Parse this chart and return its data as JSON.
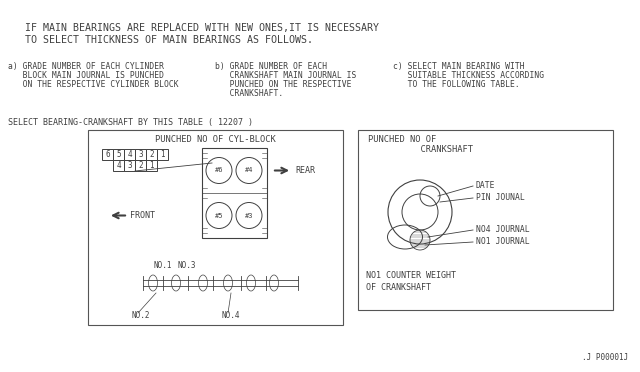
{
  "bg_color": "#ffffff",
  "title_line1": "IF MAIN BEARINGS ARE REPLACED WITH NEW ONES,IT IS NECESSARY",
  "title_line2": "TO SELECT THICKNESS OF MAIN BEARINGS AS FOLLOWS.",
  "sec_a_lines": [
    "a) GRADE NUMBER OF EACH CYLINDER",
    "   BLOCK MAIN JOURNAL IS PUNCHED",
    "   ON THE RESPECTIVE CYLINDER BLOCK"
  ],
  "sec_b_lines": [
    "b) GRADE NUMBER OF EACH",
    "   CRANKSHAFT MAIN JOURNAL IS",
    "   PUNCHED ON THE RESPECTIVE",
    "   CRANKSHAFT."
  ],
  "sec_c_lines": [
    "c) SELECT MAIN BEARING WITH",
    "   SUITABLE THICKNESS ACCORDING",
    "   TO THE FOLLOWING TABLE."
  ],
  "select_label": "SELECT BEARING-CRANKSHAFT BY THIS TABLE ( 12207 )",
  "box1_title": "PUNCHED NO OF CYL-BLOCK",
  "nums_row1": [
    "6",
    "5",
    "4",
    "3",
    "2",
    "1"
  ],
  "nums_row2": [
    "4",
    "3",
    "2",
    "1"
  ],
  "rear_label": "REAR",
  "front_label": "FRONT",
  "cyl_labels_top": [
    "#6",
    "#4"
  ],
  "cyl_labels_bot": [
    "#5",
    "#3"
  ],
  "crank_labels": [
    "NO.1",
    "NO.3",
    "NO.2",
    "NO.4"
  ],
  "box2_title1": "PUNCHED NO OF",
  "box2_title2": "          CRANKSHAFT",
  "box2_labels": [
    "DATE",
    "PIN JOUNAL",
    "NO4 JOURNAL",
    "NO1 JOURNAL"
  ],
  "box2_bottom1": "NO1 COUNTER WEIGHT",
  "box2_bottom2": "OF CRANKSHAFT",
  "footer": ".J P00001J",
  "fc": "#404040",
  "lc": "#555555"
}
